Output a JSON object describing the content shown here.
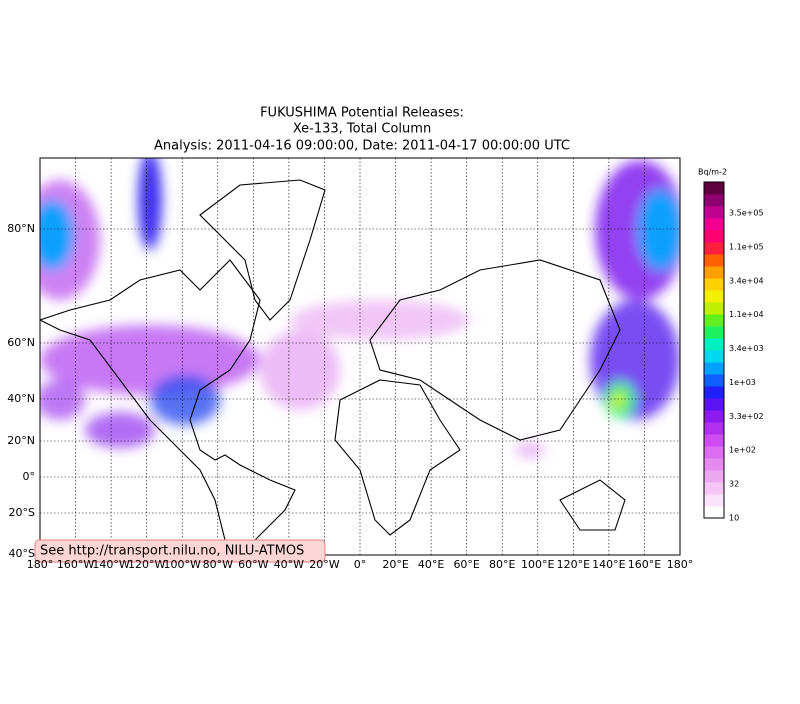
{
  "title": [
    "FUKUSHIMA Potential Releases:",
    "Xe-133, Total Column",
    "Analysis: 2011-04-16  09:00:00, Date: 2011-04-17  00:00:00 UTC"
  ],
  "longitude_labels": [
    "180°",
    "160°W",
    "140°W",
    "120°W",
    "100°W",
    "80°W",
    "60°W",
    "40°W",
    "20°W",
    "0°",
    "20°E",
    "40°E",
    "60°E",
    "80°E",
    "100°E",
    "120°E",
    "140°E",
    "160°E",
    "180°"
  ],
  "latitude_labels": [
    "80°N",
    "60°N",
    "40°N",
    "20°N",
    "0°",
    "20°S",
    "40°S"
  ],
  "colorbar": {
    "unit": "Bq/m-2",
    "labels": [
      "10",
      "32",
      "1e+02",
      "3.3e+02",
      "1e+03",
      "3.4e+03",
      "1.1e+04",
      "3.4e+04",
      "1.1e+05",
      "3.5e+05"
    ],
    "colors": [
      "#ffffff",
      "#fbe3fb",
      "#f5c6f5",
      "#eea8f2",
      "#e68af0",
      "#dc6cf0",
      "#cc4cf2",
      "#b030f2",
      "#8e1cf0",
      "#5a14f0",
      "#2020ff",
      "#1060ff",
      "#00a0ff",
      "#00d8f0",
      "#00f0c0",
      "#20f060",
      "#60f020",
      "#c0f000",
      "#f0f000",
      "#ffd000",
      "#ffa000",
      "#ff6000",
      "#ff2040",
      "#ff0070",
      "#f00090",
      "#c00090",
      "#900070",
      "#600040"
    ]
  },
  "annotation": "See http://transport.nilu.no, NILU-ATMOS"
}
